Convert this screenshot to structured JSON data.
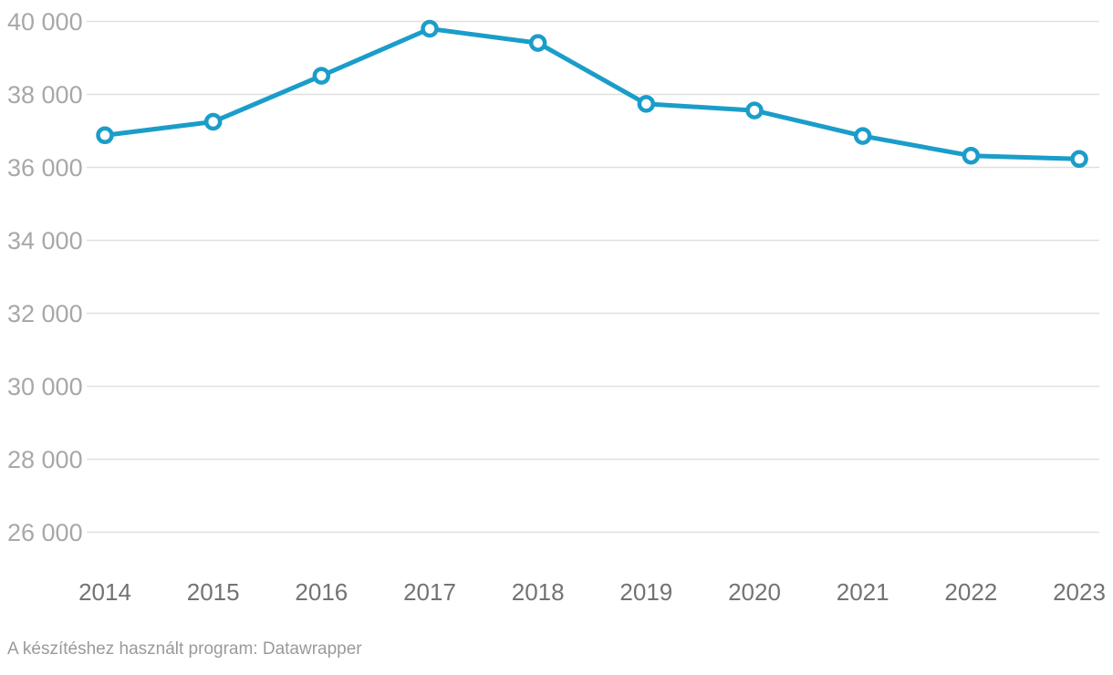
{
  "chart_data": {
    "type": "line",
    "categories": [
      "2014",
      "2015",
      "2016",
      "2017",
      "2018",
      "2019",
      "2020",
      "2021",
      "2022",
      "2023"
    ],
    "series": [
      {
        "name": "value",
        "values": [
          36880,
          37250,
          38510,
          39800,
          39410,
          37740,
          37560,
          36860,
          36320,
          36230
        ]
      }
    ],
    "title": "",
    "xlabel": "",
    "ylabel": "",
    "ylim": [
      26000,
      40000
    ],
    "y_step": 2000,
    "y_tick_labels": [
      "40 000",
      "38 000",
      "36 000",
      "34 000",
      "32 000",
      "30 000",
      "28 000",
      "26 000"
    ],
    "grid": true,
    "legend": "none",
    "line_color": "#1b9dc9",
    "marker_fill": "#ffffff"
  },
  "footer": {
    "credit": "A készítéshez használt program: Datawrapper"
  }
}
